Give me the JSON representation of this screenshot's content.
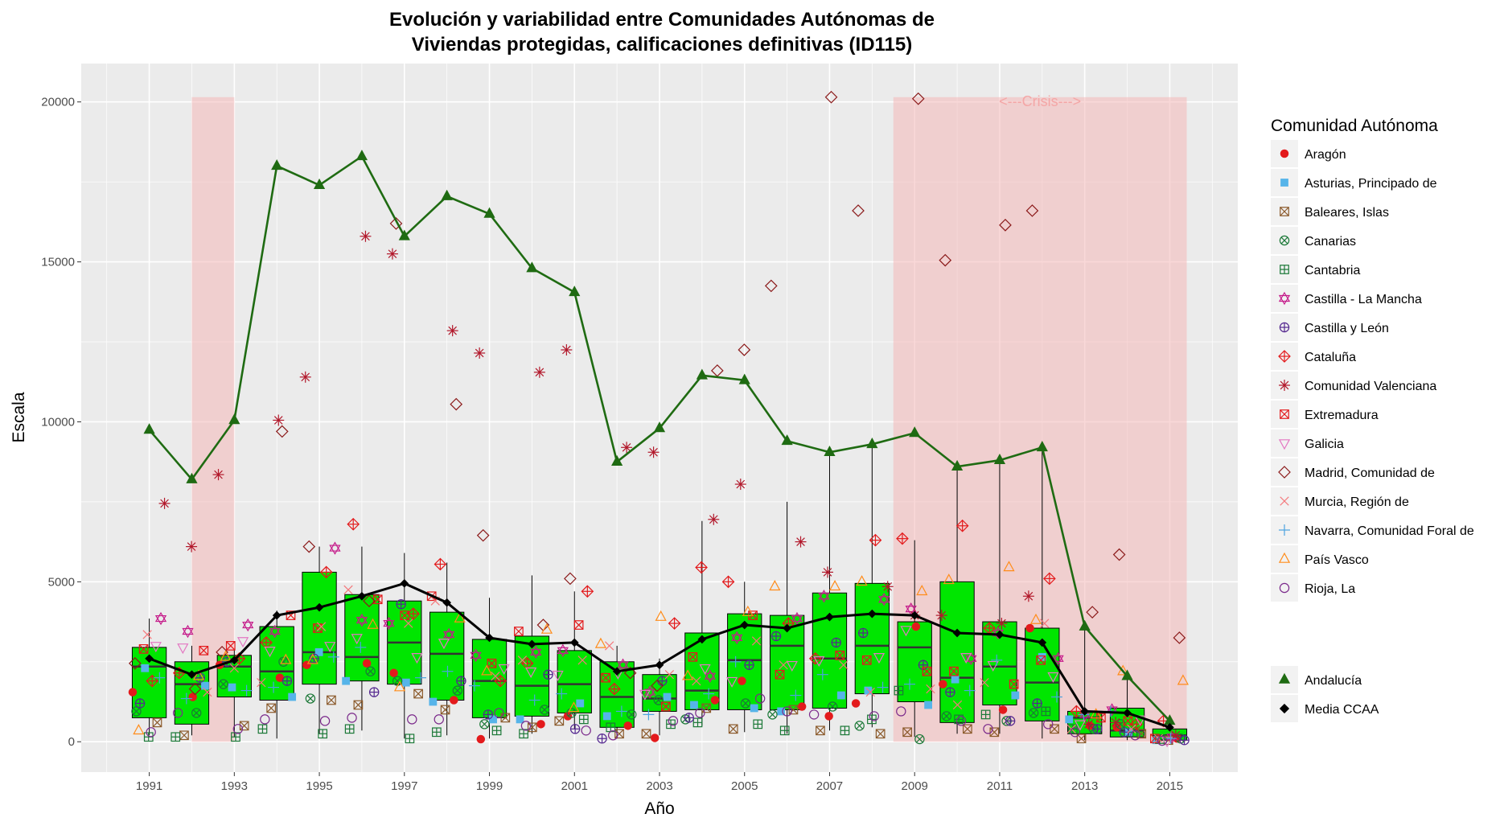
{
  "chart_data": {
    "type": "box",
    "title": [
      "Evolución y variabilidad entre Comunidades Autónomas de",
      "Viviendas protegidas, calificaciones definitivas (ID115)"
    ],
    "xlabel": "Año",
    "ylabel": "Escala",
    "x_ticks": [
      1991,
      1993,
      1995,
      1997,
      1999,
      2001,
      2003,
      2005,
      2007,
      2009,
      2011,
      2013,
      2015
    ],
    "y_ticks": [
      0,
      5000,
      10000,
      15000,
      20000
    ],
    "xlim": [
      1989.4,
      2016.6
    ],
    "ylim": [
      -950,
      21200
    ],
    "grid": true,
    "shaded_periods": [
      {
        "from": 1992,
        "to": 1993,
        "label": ""
      },
      {
        "from": 2008.5,
        "to": 2015.4,
        "label": "<---Crisis--->"
      }
    ],
    "colors": {
      "panel": "#ebebeb",
      "grid": "#ffffff",
      "band": "#f4b8b8",
      "box_fill": "#00e600",
      "andalucia": "#1f6b12",
      "media": "#000000"
    },
    "years": [
      1991,
      1992,
      1993,
      1994,
      1995,
      1996,
      1997,
      1998,
      1999,
      2000,
      2001,
      2002,
      2003,
      2004,
      2005,
      2006,
      2007,
      2008,
      2009,
      2010,
      2011,
      2012,
      2013,
      2014,
      2015
    ],
    "boxes": [
      {
        "q1": 750,
        "median": 2350,
        "q3": 2950,
        "lo": 200,
        "hi": 3850
      },
      {
        "q1": 550,
        "median": 1800,
        "q3": 2500,
        "lo": 200,
        "hi": 3000
      },
      {
        "q1": 1400,
        "median": 2350,
        "q3": 2700,
        "lo": 150,
        "hi": 2900
      },
      {
        "q1": 1300,
        "median": 2200,
        "q3": 3600,
        "lo": 100,
        "hi": 4100
      },
      {
        "q1": 1800,
        "median": 2800,
        "q3": 5300,
        "lo": 250,
        "hi": 6100
      },
      {
        "q1": 1900,
        "median": 2650,
        "q3": 4600,
        "lo": 350,
        "hi": 6100
      },
      {
        "q1": 1800,
        "median": 3100,
        "q3": 4400,
        "lo": 100,
        "hi": 5900
      },
      {
        "q1": 1300,
        "median": 2750,
        "q3": 4050,
        "lo": 200,
        "hi": 5600
      },
      {
        "q1": 750,
        "median": 1900,
        "q3": 3200,
        "lo": 100,
        "hi": 4500
      },
      {
        "q1": 800,
        "median": 1750,
        "q3": 3300,
        "lo": 250,
        "hi": 5200
      },
      {
        "q1": 900,
        "median": 1800,
        "q3": 2850,
        "lo": 400,
        "hi": 4700
      },
      {
        "q1": 450,
        "median": 1400,
        "q3": 2500,
        "lo": 100,
        "hi": 3000
      },
      {
        "q1": 950,
        "median": 1350,
        "q3": 2100,
        "lo": 200,
        "hi": 2600
      },
      {
        "q1": 1000,
        "median": 1600,
        "q3": 3400,
        "lo": 500,
        "hi": 6900
      },
      {
        "q1": 1000,
        "median": 2550,
        "q3": 4000,
        "lo": 300,
        "hi": 5000
      },
      {
        "q1": 1000,
        "median": 3000,
        "q3": 3950,
        "lo": 250,
        "hi": 7500
      },
      {
        "q1": 1050,
        "median": 2600,
        "q3": 4650,
        "lo": 350,
        "hi": 9100
      },
      {
        "q1": 1500,
        "median": 3000,
        "q3": 4950,
        "lo": 450,
        "hi": 9300
      },
      {
        "q1": 1250,
        "median": 2950,
        "q3": 3750,
        "lo": 150,
        "hi": 6300
      },
      {
        "q1": 600,
        "median": 2000,
        "q3": 5000,
        "lo": 250,
        "hi": 8600
      },
      {
        "q1": 1150,
        "median": 2350,
        "q3": 3750,
        "lo": 250,
        "hi": 8800
      },
      {
        "q1": 650,
        "median": 1850,
        "q3": 3550,
        "lo": 100,
        "hi": 9200
      },
      {
        "q1": 250,
        "median": 750,
        "q3": 950,
        "lo": 50,
        "hi": 3500
      },
      {
        "q1": 150,
        "median": 350,
        "q3": 1050,
        "lo": 50,
        "hi": 2000
      },
      {
        "q1": 50,
        "median": 200,
        "q3": 400,
        "lo": 10,
        "hi": 600
      }
    ],
    "series": [
      {
        "name": "Andalucía",
        "values": [
          9750,
          8200,
          10050,
          18000,
          17400,
          18300,
          15800,
          17050,
          16500,
          14800,
          14050,
          8750,
          9800,
          11450,
          11300,
          9400,
          9050,
          9300,
          9650,
          8600,
          8800,
          9200,
          3600,
          2050,
          650
        ]
      },
      {
        "name": "Media CCAA",
        "values": [
          2600,
          2100,
          2550,
          3950,
          4200,
          4550,
          4950,
          4350,
          3250,
          3050,
          3100,
          2200,
          2400,
          3200,
          3650,
          3550,
          3900,
          4000,
          3950,
          3400,
          3350,
          3100,
          950,
          900,
          450
        ]
      }
    ],
    "legend": {
      "title": "Comunidad Autónoma",
      "entries": [
        {
          "name": "Aragón",
          "shape": "circle",
          "color": "#e31a1c"
        },
        {
          "name": "Asturias, Principado de",
          "shape": "square",
          "color": "#56b4e9"
        },
        {
          "name": "Baleares, Islas",
          "shape": "square-x",
          "color": "#8b5a2b"
        },
        {
          "name": "Canarias",
          "shape": "circle-x",
          "color": "#1b7837"
        },
        {
          "name": "Cantabria",
          "shape": "square-plus",
          "color": "#1b7837"
        },
        {
          "name": "Castilla - La Mancha",
          "shape": "star-of-david",
          "color": "#c51b8a"
        },
        {
          "name": "Castilla y León",
          "shape": "circle-plus",
          "color": "#54278f"
        },
        {
          "name": "Cataluña",
          "shape": "diamond-plus",
          "color": "#e31a1c"
        },
        {
          "name": "Comunidad Valenciana",
          "shape": "asterisk",
          "color": "#b2182b"
        },
        {
          "name": "Extremadura",
          "shape": "square-x",
          "color": "#e31a1c"
        },
        {
          "name": "Galicia",
          "shape": "triangle-down",
          "color": "#e377c2"
        },
        {
          "name": "Madrid, Comunidad de",
          "shape": "diamond",
          "color": "#8b1a1a"
        },
        {
          "name": "Murcia, Región de",
          "shape": "x",
          "color": "#f4777a"
        },
        {
          "name": "Navarra, Comunidad Foral de",
          "shape": "plus",
          "color": "#4ba3e0"
        },
        {
          "name": "País Vasco",
          "shape": "triangle",
          "color": "#ff8c1a"
        },
        {
          "name": "Rioja, La",
          "shape": "circle-open",
          "color": "#7b2a8b"
        }
      ],
      "extra_entries": [
        {
          "name": "Andalucía",
          "shape": "triangle-filled",
          "color": "#1f6b12"
        },
        {
          "name": "Media CCAA",
          "shape": "diamond-filled",
          "color": "#000000"
        }
      ]
    },
    "points": {
      "Aragón": [
        1550,
        1400,
        2400,
        2000,
        2400,
        2450,
        2150,
        1300,
        80,
        550,
        800,
        500,
        120,
        1300,
        1900,
        1100,
        800,
        1200,
        3600,
        1800,
        1000,
        3550,
        500,
        450,
        100
      ],
      "Asturias, Principado de": [
        2300,
        1750,
        1700,
        1400,
        2800,
        1900,
        1850,
        1250,
        700,
        700,
        1200,
        800,
        1400,
        1150,
        1050,
        950,
        1450,
        1600,
        1150,
        1950,
        1450,
        2650,
        700,
        300,
        50
      ],
      "Baleares, Islas": [
        600,
        200,
        500,
        1050,
        1300,
        1150,
        1500,
        1000,
        750,
        450,
        650,
        250,
        250,
        1050,
        400,
        1000,
        350,
        250,
        300,
        400,
        300,
        400,
        100,
        250,
        50
      ],
      "Canarias": [
        950,
        900,
        1800,
        2500,
        1350,
        2200,
        1900,
        1600,
        550,
        1000,
        900,
        850,
        1300,
        700,
        1200,
        850,
        1100,
        500,
        80,
        800,
        650,
        900,
        400,
        550,
        100
      ],
      "Cantabria": [
        150,
        150,
        150,
        400,
        250,
        400,
        100,
        300,
        350,
        250,
        700,
        450,
        550,
        600,
        550,
        350,
        350,
        700,
        1600,
        700,
        850,
        950,
        400,
        300,
        80
      ],
      "Castilla - La Mancha": [
        3850,
        3450,
        3650,
        3450,
        6050,
        3800,
        3700,
        3350,
        2700,
        2800,
        2850,
        2400,
        1550,
        2050,
        3250,
        3850,
        4550,
        4450,
        4150,
        2600,
        3400,
        2600,
        850,
        1000,
        150
      ],
      "Castilla y León": [
        1200,
        2000,
        2500,
        1900,
        2600,
        1550,
        4300,
        1900,
        850,
        2100,
        400,
        100,
        1900,
        750,
        2400,
        3300,
        3100,
        3400,
        2400,
        1550,
        650,
        1200,
        400,
        300,
        50
      ],
      "Cataluña": [
        1900,
        2150,
        2600,
        3100,
        5300,
        6800,
        4000,
        5550,
        1900,
        2450,
        4700,
        1650,
        3700,
        5450,
        5000,
        3700,
        2600,
        6300,
        6350,
        6750,
        3550,
        5100,
        950,
        550,
        650
      ],
      "Comunidad Valenciana": [
        7450,
        6100,
        8350,
        10050,
        11400,
        15800,
        15250,
        12850,
        12150,
        11550,
        12250,
        9200,
        9050,
        6950,
        8050,
        6250,
        5300,
        4850,
        3950,
        3950,
        3700,
        4550,
        550,
        600,
        200
      ],
      "Extremadura": [
        2900,
        2850,
        3000,
        3950,
        3550,
        4450,
        3950,
        4550,
        2450,
        3450,
        3650,
        2000,
        1100,
        2650,
        3950,
        2100,
        2700,
        2550,
        2200,
        2200,
        1800,
        2550,
        750,
        650,
        100
      ],
      "Galicia": [
        3000,
        2950,
        3150,
        2850,
        3000,
        3250,
        2650,
        3100,
        2300,
        2200,
        2100,
        2150,
        1500,
        2300,
        1900,
        2400,
        2550,
        2650,
        3500,
        2650,
        2400,
        2050,
        550,
        700,
        30
      ],
      "Madrid, Comunidad de": [
        2450,
        1650,
        2800,
        9700,
        6100,
        4400,
        16200,
        10550,
        6450,
        3650,
        5100,
        2150,
        1750,
        11600,
        12250,
        14250,
        20150,
        16600,
        20100,
        15050,
        16150,
        16600,
        4050,
        5850,
        3250
      ],
      "Murcia, Región de": [
        3350,
        1550,
        2300,
        1850,
        3600,
        4750,
        3700,
        4400,
        2050,
        2550,
        2550,
        3000,
        2100,
        1900,
        3150,
        2400,
        2400,
        1550,
        1650,
        1150,
        1850,
        3700,
        400,
        400,
        100
      ],
      "Navarra, Comunidad Foral de": [
        2000,
        1350,
        1600,
        1700,
        2650,
        2950,
        2000,
        2200,
        1750,
        1300,
        1500,
        950,
        850,
        1500,
        2500,
        1450,
        2100,
        1700,
        1800,
        1600,
        2550,
        1400,
        850,
        950,
        100
      ],
      "País Vasco": [
        350,
        2050,
        2650,
        2550,
        2550,
        3650,
        1700,
        3850,
        2200,
        3500,
        1050,
        3050,
        3900,
        2050,
        4050,
        4850,
        4850,
        5000,
        4700,
        5050,
        5450,
        3800,
        850,
        2200,
        1900
      ],
      "Rioja, La": [
        300,
        900,
        400,
        700,
        650,
        750,
        700,
        700,
        900,
        500,
        350,
        200,
        650,
        900,
        1350,
        950,
        850,
        800,
        950,
        650,
        400,
        550,
        300,
        200,
        30
      ]
    }
  }
}
